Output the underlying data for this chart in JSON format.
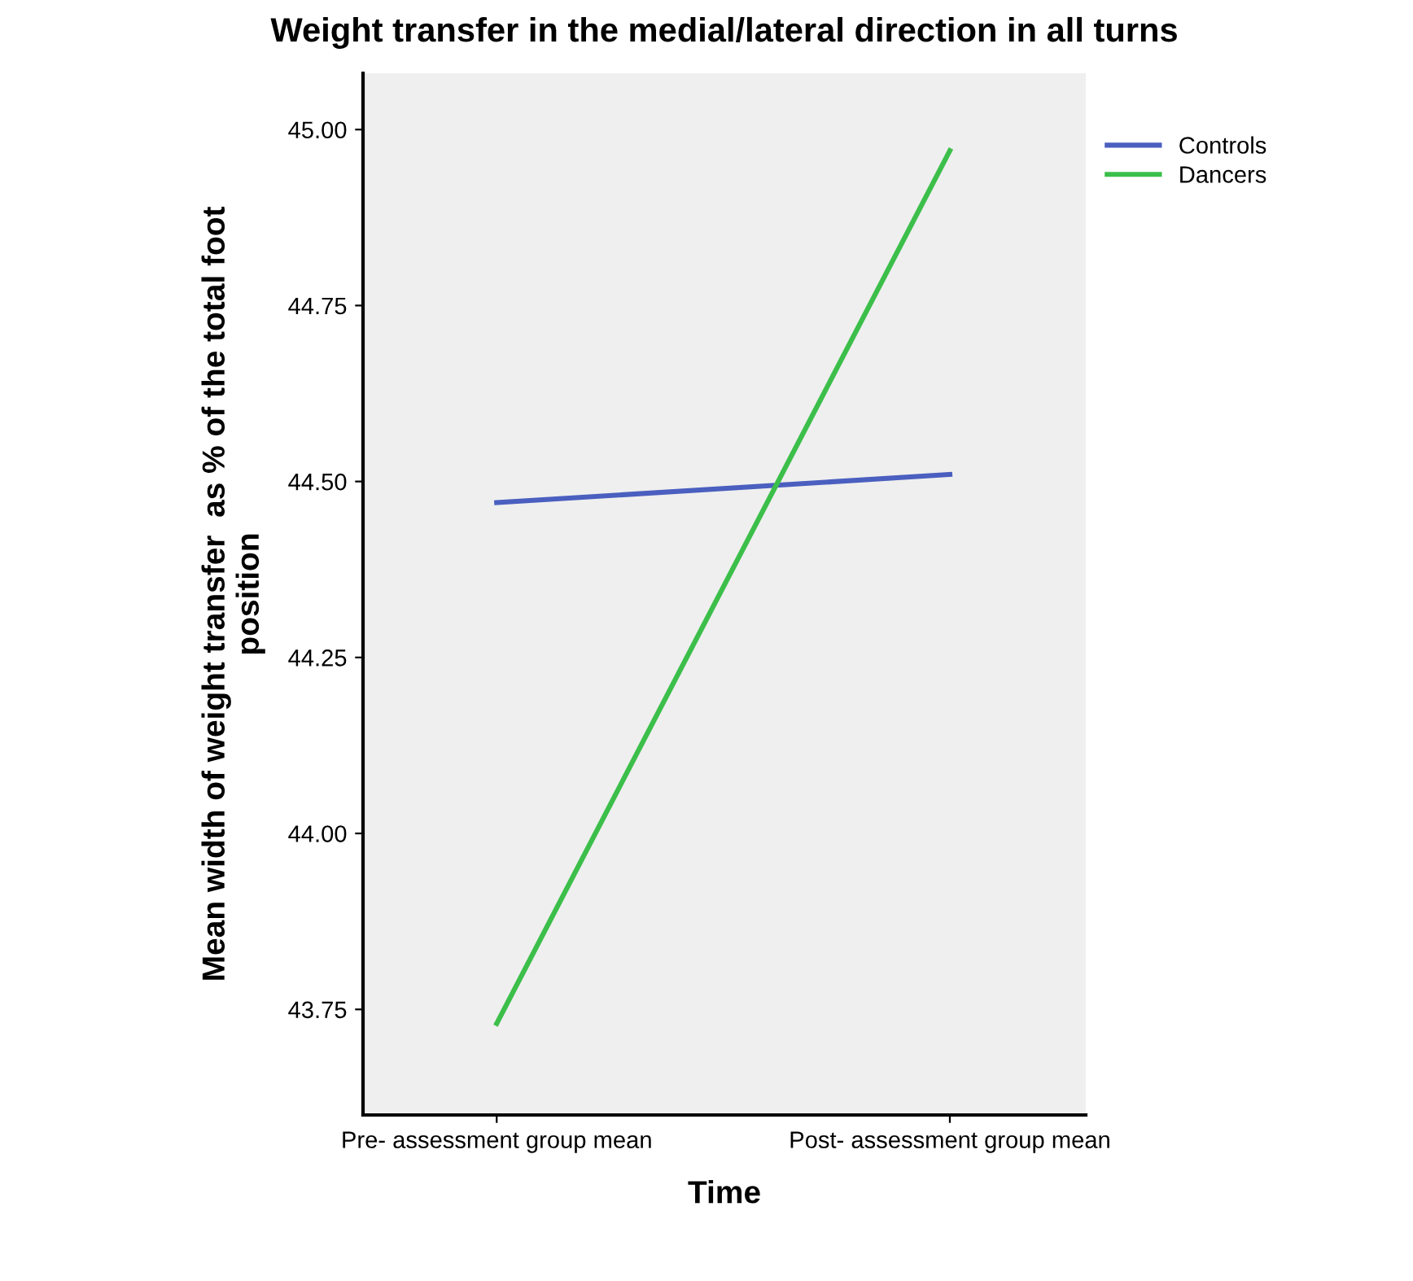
{
  "chart_data": {
    "type": "line",
    "title": "Weight transfer in the medial/lateral direction in all turns",
    "xlabel": "Time",
    "ylabel": "Mean width of weight transfer  as % of the total foot\nposition",
    "categories": [
      "Pre- assessment group mean",
      "Post- assessment group mean"
    ],
    "series": [
      {
        "name": "Controls",
        "color": "#4a5fbf",
        "values": [
          44.47,
          44.51
        ]
      },
      {
        "name": "Dancers",
        "color": "#3cbf4a",
        "values": [
          43.73,
          44.97
        ]
      }
    ],
    "ylim": [
      43.6,
      45.08
    ],
    "yticks": [
      {
        "value": 43.75,
        "label": "43.75"
      },
      {
        "value": 44.0,
        "label": "44.00"
      },
      {
        "value": 44.25,
        "label": "44.25"
      },
      {
        "value": 44.5,
        "label": "44.50"
      },
      {
        "value": 44.75,
        "label": "44.75"
      },
      {
        "value": 45.0,
        "label": "45.00"
      }
    ],
    "grid": false,
    "legend": "top right",
    "marker": "none",
    "line_style": "solid"
  }
}
